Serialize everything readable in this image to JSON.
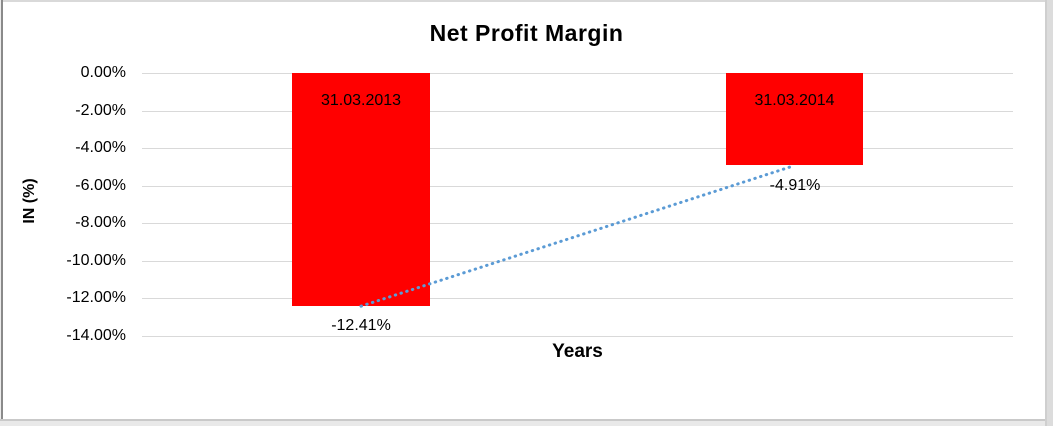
{
  "chart_data": {
    "type": "bar",
    "title": "Net Profit Margin",
    "xlabel": "Years",
    "ylabel": "IN (%)",
    "categories": [
      "31.03.2013",
      "31.03.2014"
    ],
    "series": [
      {
        "name": "Net Profit Margin",
        "values": [
          -12.41,
          -4.91
        ]
      }
    ],
    "values": [
      -12.41,
      -4.91
    ],
    "value_labels": [
      "-12.41%",
      "-4.91%"
    ],
    "ytick_labels": [
      "0.00%",
      "-2.00%",
      "-4.00%",
      "-6.00%",
      "-8.00%",
      "-10.00%",
      "-12.00%",
      "-14.00%"
    ],
    "ylim": [
      -14,
      0
    ],
    "ytick_step": 2,
    "grid": true,
    "legend": "none",
    "trendline": {
      "style": "dotted-linear",
      "from_value": -12.41,
      "to_value": -4.91
    },
    "colors": {
      "bar": "#ff0000",
      "trendline": "#5b9bd5",
      "gridline": "#d9d9d9",
      "text": "#000000",
      "frame": "#d9d9d9"
    }
  }
}
